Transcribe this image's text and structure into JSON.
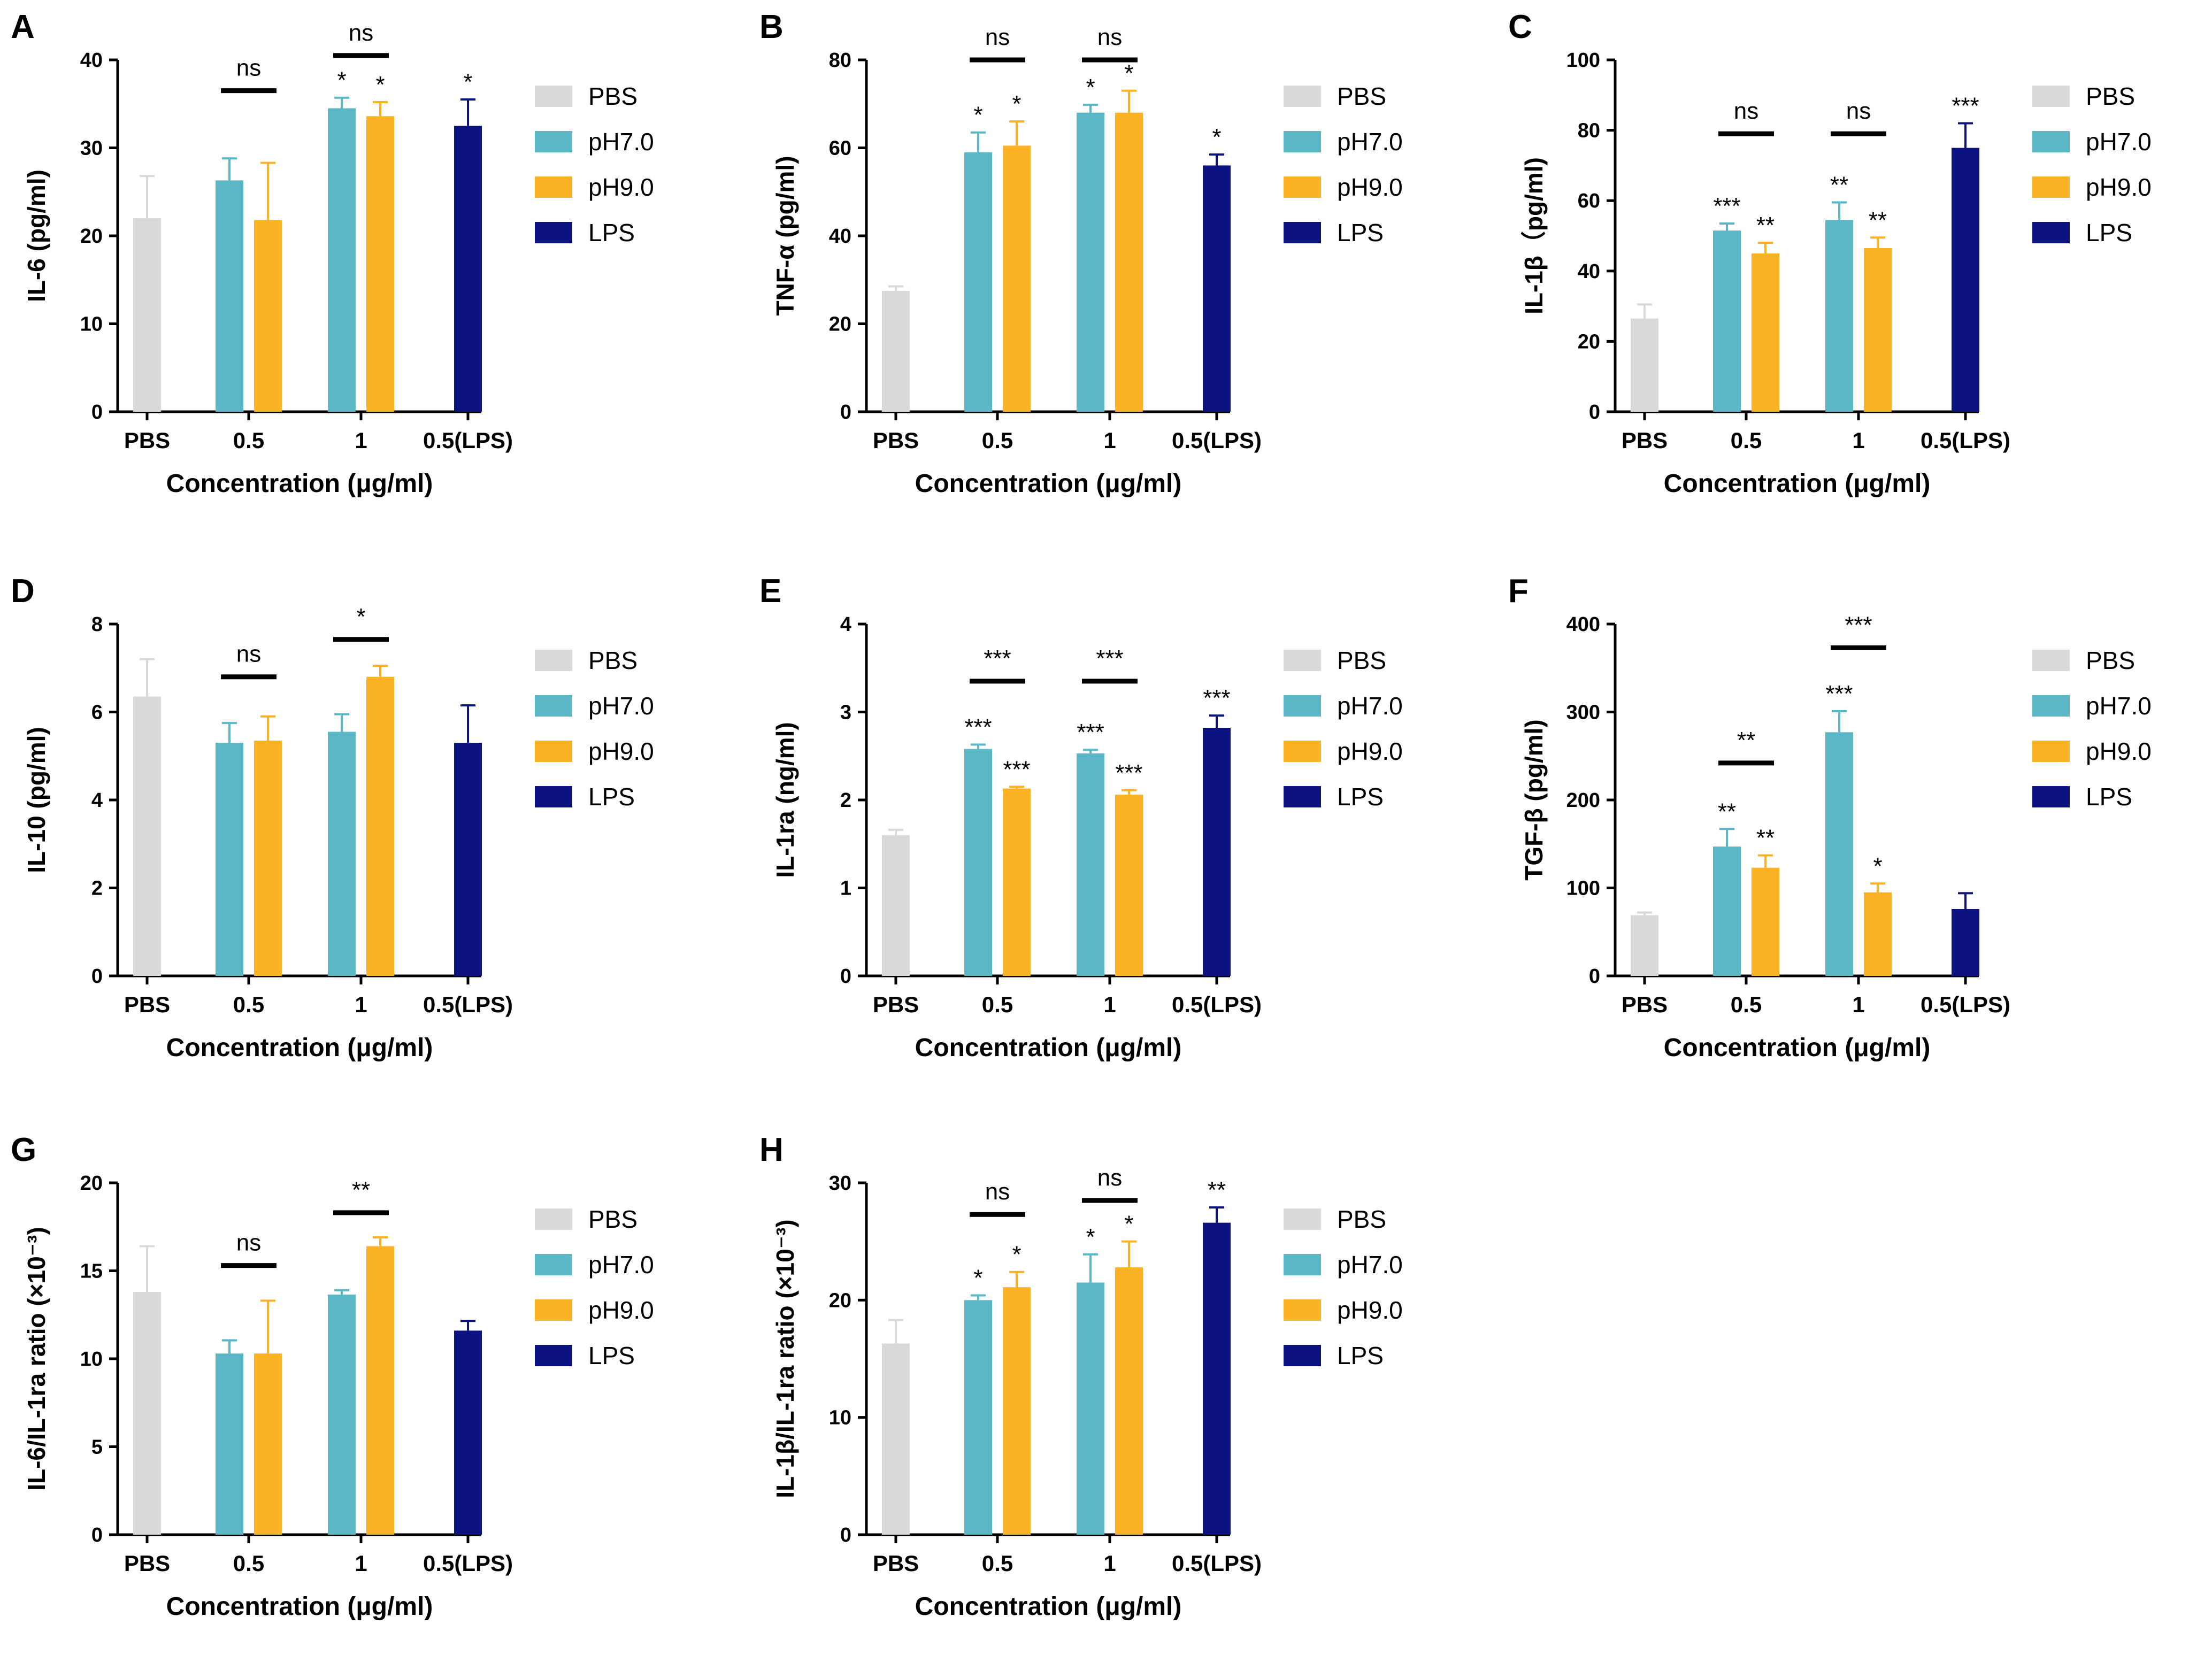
{
  "legend": [
    {
      "key": "pbs",
      "label": "PBS",
      "color": "#d9d9d9"
    },
    {
      "key": "ph7",
      "label": "pH7.0",
      "color": "#5bb7c6"
    },
    {
      "key": "ph9",
      "label": "pH9.0",
      "color": "#fbb224"
    },
    {
      "key": "lps",
      "label": "LPS",
      "color": "#0c127f"
    }
  ],
  "chart_data": [
    {
      "panel": "A",
      "type": "bar",
      "ylabel": "IL-6 (pg/ml)",
      "xlabel": "Concentration (μg/ml)",
      "ylim": [
        0,
        40
      ],
      "yticks": [
        0,
        10,
        20,
        30,
        40
      ],
      "categories": [
        "PBS",
        "0.5",
        "1",
        "0.5(LPS)"
      ],
      "bars": [
        {
          "cat": 0,
          "series": "pbs",
          "value": 22,
          "err": 4.8,
          "sig": ""
        },
        {
          "cat": 1,
          "series": "ph7",
          "value": 26.3,
          "err": 2.5,
          "sig": ""
        },
        {
          "cat": 1,
          "series": "ph9",
          "value": 21.8,
          "err": 6.5,
          "sig": ""
        },
        {
          "cat": 2,
          "series": "ph7",
          "value": 34.5,
          "err": 1.2,
          "sig": "*"
        },
        {
          "cat": 2,
          "series": "ph9",
          "value": 33.6,
          "err": 1.6,
          "sig": "*"
        },
        {
          "cat": 3,
          "series": "lps",
          "value": 32.5,
          "err": 3.0,
          "sig": "*"
        }
      ],
      "brackets": [
        {
          "cat": 1,
          "label": "ns",
          "y": 36.5
        },
        {
          "cat": 2,
          "label": "ns",
          "y": 40.5
        }
      ]
    },
    {
      "panel": "B",
      "type": "bar",
      "ylabel": "TNF-α (pg/ml)",
      "xlabel": "Concentration (μg/ml)",
      "ylim": [
        0,
        80
      ],
      "yticks": [
        0,
        20,
        40,
        60,
        80
      ],
      "categories": [
        "PBS",
        "0.5",
        "1",
        "0.5(LPS)"
      ],
      "bars": [
        {
          "cat": 0,
          "series": "pbs",
          "value": 27.5,
          "err": 1,
          "sig": ""
        },
        {
          "cat": 1,
          "series": "ph7",
          "value": 59,
          "err": 4.5,
          "sig": "*"
        },
        {
          "cat": 1,
          "series": "ph9",
          "value": 60.5,
          "err": 5.5,
          "sig": "*"
        },
        {
          "cat": 2,
          "series": "ph7",
          "value": 68,
          "err": 1.8,
          "sig": "*"
        },
        {
          "cat": 2,
          "series": "ph9",
          "value": 68,
          "err": 5,
          "sig": "*"
        },
        {
          "cat": 3,
          "series": "lps",
          "value": 56,
          "err": 2.5,
          "sig": "*"
        }
      ],
      "brackets": [
        {
          "cat": 1,
          "label": "ns",
          "y": 80
        },
        {
          "cat": 2,
          "label": "ns",
          "y": 80
        }
      ]
    },
    {
      "panel": "C",
      "type": "bar",
      "ylabel": "IL-1β（pg/ml)",
      "xlabel": "Concentration (μg/ml)",
      "ylim": [
        0,
        100
      ],
      "yticks": [
        0,
        20,
        40,
        60,
        80,
        100
      ],
      "categories": [
        "PBS",
        "0.5",
        "1",
        "0.5(LPS)"
      ],
      "bars": [
        {
          "cat": 0,
          "series": "pbs",
          "value": 26.5,
          "err": 4,
          "sig": ""
        },
        {
          "cat": 1,
          "series": "ph7",
          "value": 51.5,
          "err": 2,
          "sig": "***"
        },
        {
          "cat": 1,
          "series": "ph9",
          "value": 45,
          "err": 3,
          "sig": "**"
        },
        {
          "cat": 2,
          "series": "ph7",
          "value": 54.5,
          "err": 5,
          "sig": "**"
        },
        {
          "cat": 2,
          "series": "ph9",
          "value": 46.5,
          "err": 3,
          "sig": "**"
        },
        {
          "cat": 3,
          "series": "lps",
          "value": 75,
          "err": 7,
          "sig": "***"
        }
      ],
      "brackets": [
        {
          "cat": 1,
          "label": "ns",
          "y": 79
        },
        {
          "cat": 2,
          "label": "ns",
          "y": 79
        }
      ]
    },
    {
      "panel": "D",
      "type": "bar",
      "ylabel": "IL-10 (pg/ml)",
      "xlabel": "Concentration (μg/ml)",
      "ylim": [
        0,
        8
      ],
      "yticks": [
        0,
        2,
        4,
        6,
        8
      ],
      "categories": [
        "PBS",
        "0.5",
        "1",
        "0.5(LPS)"
      ],
      "bars": [
        {
          "cat": 0,
          "series": "pbs",
          "value": 6.35,
          "err": 0.85,
          "sig": ""
        },
        {
          "cat": 1,
          "series": "ph7",
          "value": 5.3,
          "err": 0.45,
          "sig": ""
        },
        {
          "cat": 1,
          "series": "ph9",
          "value": 5.35,
          "err": 0.55,
          "sig": ""
        },
        {
          "cat": 2,
          "series": "ph7",
          "value": 5.55,
          "err": 0.4,
          "sig": ""
        },
        {
          "cat": 2,
          "series": "ph9",
          "value": 6.8,
          "err": 0.25,
          "sig": ""
        },
        {
          "cat": 3,
          "series": "lps",
          "value": 5.3,
          "err": 0.85,
          "sig": ""
        }
      ],
      "brackets": [
        {
          "cat": 1,
          "label": "ns",
          "y": 6.8
        },
        {
          "cat": 2,
          "label": "*",
          "y": 7.65
        }
      ]
    },
    {
      "panel": "E",
      "type": "bar",
      "ylabel": "IL-1ra (ng/ml)",
      "xlabel": "Concentration (μg/ml)",
      "ylim": [
        0,
        4
      ],
      "yticks": [
        0,
        1,
        2,
        3,
        4
      ],
      "categories": [
        "PBS",
        "0.5",
        "1",
        "0.5(LPS)"
      ],
      "bars": [
        {
          "cat": 0,
          "series": "pbs",
          "value": 1.6,
          "err": 0.06,
          "sig": ""
        },
        {
          "cat": 1,
          "series": "ph7",
          "value": 2.58,
          "err": 0.05,
          "sig": "***"
        },
        {
          "cat": 1,
          "series": "ph9",
          "value": 2.13,
          "err": 0.02,
          "sig": "***"
        },
        {
          "cat": 2,
          "series": "ph7",
          "value": 2.53,
          "err": 0.04,
          "sig": "***"
        },
        {
          "cat": 2,
          "series": "ph9",
          "value": 2.06,
          "err": 0.05,
          "sig": "***"
        },
        {
          "cat": 3,
          "series": "lps",
          "value": 2.82,
          "err": 0.14,
          "sig": "***"
        }
      ],
      "brackets": [
        {
          "cat": 1,
          "label": "***",
          "y": 3.35
        },
        {
          "cat": 2,
          "label": "***",
          "y": 3.35
        }
      ]
    },
    {
      "panel": "F",
      "type": "bar",
      "ylabel": "TGF-β (pg/ml)",
      "xlabel": "Concentration (μg/ml)",
      "ylim": [
        0,
        400
      ],
      "yticks": [
        0,
        100,
        200,
        300,
        400
      ],
      "categories": [
        "PBS",
        "0.5",
        "1",
        "0.5(LPS)"
      ],
      "bars": [
        {
          "cat": 0,
          "series": "pbs",
          "value": 69,
          "err": 3,
          "sig": ""
        },
        {
          "cat": 1,
          "series": "ph7",
          "value": 147,
          "err": 20,
          "sig": "**"
        },
        {
          "cat": 1,
          "series": "ph9",
          "value": 123,
          "err": 14,
          "sig": "**"
        },
        {
          "cat": 2,
          "series": "ph7",
          "value": 277,
          "err": 24,
          "sig": "***"
        },
        {
          "cat": 2,
          "series": "ph9",
          "value": 95,
          "err": 10,
          "sig": "*"
        },
        {
          "cat": 3,
          "series": "lps",
          "value": 76,
          "err": 18,
          "sig": ""
        }
      ],
      "brackets": [
        {
          "cat": 1,
          "label": "**",
          "y": 242
        },
        {
          "cat": 2,
          "label": "***",
          "y": 373
        }
      ]
    },
    {
      "panel": "G",
      "type": "bar",
      "ylabel": "IL-6/IL-1ra ratio (×10⁻³)",
      "xlabel": "Concentration (μg/ml)",
      "ylim": [
        0,
        20
      ],
      "yticks": [
        0,
        5,
        10,
        15,
        20
      ],
      "categories": [
        "PBS",
        "0.5",
        "1",
        "0.5(LPS)"
      ],
      "bars": [
        {
          "cat": 0,
          "series": "pbs",
          "value": 13.8,
          "err": 2.6,
          "sig": ""
        },
        {
          "cat": 1,
          "series": "ph7",
          "value": 10.3,
          "err": 0.75,
          "sig": ""
        },
        {
          "cat": 1,
          "series": "ph9",
          "value": 10.3,
          "err": 3,
          "sig": ""
        },
        {
          "cat": 2,
          "series": "ph7",
          "value": 13.65,
          "err": 0.25,
          "sig": ""
        },
        {
          "cat": 2,
          "series": "ph9",
          "value": 16.4,
          "err": 0.5,
          "sig": ""
        },
        {
          "cat": 3,
          "series": "lps",
          "value": 11.6,
          "err": 0.55,
          "sig": ""
        }
      ],
      "brackets": [
        {
          "cat": 1,
          "label": "ns",
          "y": 15.3
        },
        {
          "cat": 2,
          "label": "**",
          "y": 18.3
        }
      ]
    },
    {
      "panel": "H",
      "type": "bar",
      "ylabel": "IL-1β/IL-1ra ratio (×10⁻³)",
      "xlabel": "Concentration (μg/ml)",
      "ylim": [
        0,
        30
      ],
      "yticks": [
        0,
        10,
        20,
        30
      ],
      "categories": [
        "PBS",
        "0.5",
        "1",
        "0.5(LPS)"
      ],
      "bars": [
        {
          "cat": 0,
          "series": "pbs",
          "value": 16.3,
          "err": 2,
          "sig": ""
        },
        {
          "cat": 1,
          "series": "ph7",
          "value": 20,
          "err": 0.4,
          "sig": "*"
        },
        {
          "cat": 1,
          "series": "ph9",
          "value": 21.1,
          "err": 1.3,
          "sig": "*"
        },
        {
          "cat": 2,
          "series": "ph7",
          "value": 21.5,
          "err": 2.4,
          "sig": "*"
        },
        {
          "cat": 2,
          "series": "ph9",
          "value": 22.8,
          "err": 2.2,
          "sig": "*"
        },
        {
          "cat": 3,
          "series": "lps",
          "value": 26.6,
          "err": 1.3,
          "sig": "**"
        }
      ],
      "brackets": [
        {
          "cat": 1,
          "label": "ns",
          "y": 27.3
        },
        {
          "cat": 2,
          "label": "ns",
          "y": 28.5
        }
      ]
    }
  ]
}
